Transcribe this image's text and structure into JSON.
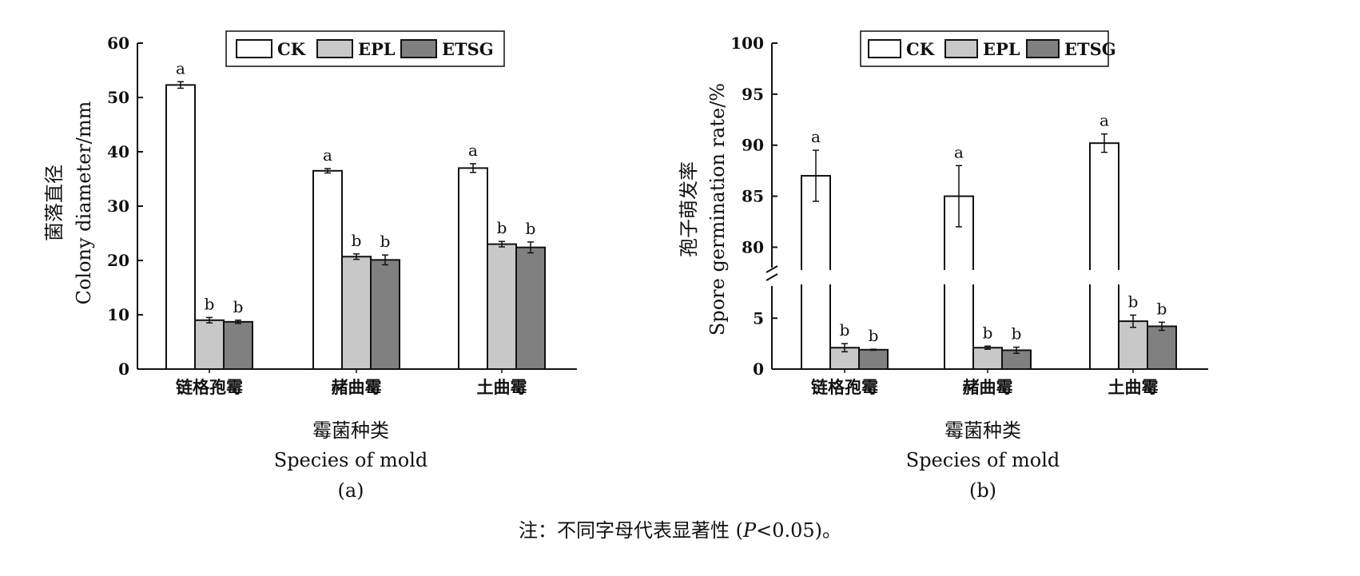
{
  "chart_data": [
    {
      "type": "bar",
      "panel_label": "(a)",
      "categories": [
        "链格孢霉",
        "赭曲霉",
        "土曲霉"
      ],
      "series": [
        {
          "name": "CK",
          "values": [
            52.3,
            36.5,
            37.0
          ],
          "errors": [
            0.6,
            0.4,
            0.8
          ],
          "letters": [
            "a",
            "a",
            "a"
          ],
          "color": "#ffffff"
        },
        {
          "name": "EPL",
          "values": [
            9.0,
            20.7,
            23.0
          ],
          "errors": [
            0.5,
            0.5,
            0.5
          ],
          "letters": [
            "b",
            "b",
            "b"
          ],
          "color": "#c8c8c8"
        },
        {
          "name": "ETSG",
          "values": [
            8.7,
            20.1,
            22.4
          ],
          "errors": [
            0.3,
            0.9,
            1.0
          ],
          "letters": [
            "b",
            "b",
            "b"
          ],
          "color": "#808080"
        }
      ],
      "ylabel_cn": "菌落直径",
      "ylabel_en": "Colony diameter/mm",
      "xlabel_cn": "霉菌种类",
      "xlabel_en": "Species of mold",
      "ylim": [
        0,
        60
      ],
      "yticks": [
        "0",
        "10",
        "20",
        "30",
        "40",
        "50",
        "60"
      ],
      "legend_position": "top-center",
      "grid": false
    },
    {
      "type": "bar",
      "panel_label": "(b)",
      "categories": [
        "链格孢霉",
        "赭曲霉",
        "土曲霉"
      ],
      "series": [
        {
          "name": "CK",
          "values": [
            87.0,
            85.0,
            90.2
          ],
          "errors": [
            2.5,
            3.0,
            0.9
          ],
          "letters": [
            "a",
            "a",
            "a"
          ],
          "color": "#ffffff"
        },
        {
          "name": "EPL",
          "values": [
            2.1,
            2.1,
            4.7
          ],
          "errors": [
            0.4,
            0.15,
            0.6
          ],
          "letters": [
            "b",
            "b",
            "b"
          ],
          "color": "#c8c8c8"
        },
        {
          "name": "ETSG",
          "values": [
            1.9,
            1.85,
            4.2
          ],
          "errors": [
            0.05,
            0.3,
            0.4
          ],
          "letters": [
            "b",
            "b",
            "b"
          ],
          "color": "#808080"
        }
      ],
      "ylabel_cn": "孢子萌发率",
      "ylabel_en": "Spore germination rate/%",
      "xlabel_cn": "霉菌种类",
      "xlabel_en": "Species of mold",
      "ylim": [
        0,
        100
      ],
      "axis_break": [
        8,
        78
      ],
      "yticks_lower": [
        "0",
        "5"
      ],
      "yticks_upper": [
        "80",
        "85",
        "90",
        "95",
        "100"
      ],
      "legend_position": "top-center",
      "grid": false
    }
  ],
  "note": {
    "prefix": "注：不同字母代表显著性 (",
    "p_symbol": "P",
    "suffix": "<0.05)。"
  }
}
